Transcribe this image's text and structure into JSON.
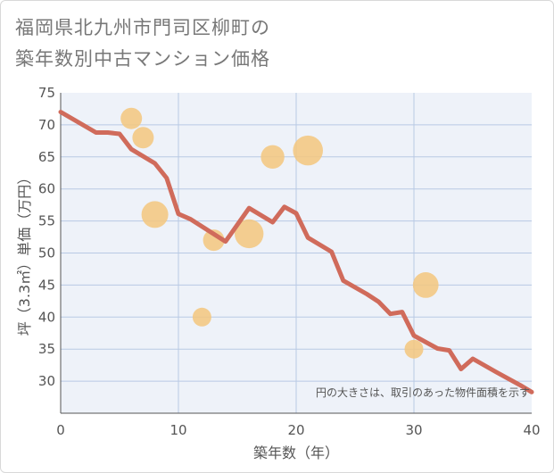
{
  "title_line1": "福岡県北九州市門司区柳町の",
  "title_line2": "築年数別中古マンション価格",
  "chart_data": {
    "type": "scatter+line",
    "title": "福岡県北九州市門司区柳町の築年数別中古マンション価格",
    "xlabel": "築年数（年）",
    "ylabel": "坪（3.3㎡）単価（万円）",
    "xlim": [
      0,
      40
    ],
    "ylim": [
      25,
      75
    ],
    "xticks": [
      0,
      10,
      20,
      30,
      40
    ],
    "yticks": [
      30,
      35,
      40,
      45,
      50,
      55,
      60,
      65,
      70,
      75
    ],
    "grid": true,
    "note": "円の大きさは、取引のあった物件面積を示す",
    "colors": {
      "line": "#d06b5b",
      "bubble": "#f3c77e"
    },
    "line": {
      "x": [
        0,
        3,
        4,
        5,
        6,
        8,
        9,
        10,
        11,
        14,
        16,
        18,
        19,
        20,
        21,
        23,
        24,
        26,
        27,
        28,
        29,
        30,
        32,
        33,
        34,
        35,
        37,
        39,
        40
      ],
      "y": [
        72,
        68.8,
        68.8,
        68.6,
        66.2,
        64,
        61.7,
        56.1,
        55.3,
        51.8,
        57,
        54.8,
        57.2,
        56.2,
        52.4,
        50.2,
        45.7,
        43.6,
        42.4,
        40.5,
        40.8,
        37.1,
        35.1,
        34.8,
        31.9,
        33.5,
        31.4,
        29.4,
        28.3
      ]
    },
    "bubbles": [
      {
        "x": 6,
        "y": 71,
        "size": 1.0
      },
      {
        "x": 7,
        "y": 68,
        "size": 1.0
      },
      {
        "x": 8,
        "y": 56,
        "size": 1.5
      },
      {
        "x": 12,
        "y": 40,
        "size": 0.75
      },
      {
        "x": 13,
        "y": 52,
        "size": 1.0
      },
      {
        "x": 16,
        "y": 53,
        "size": 1.7
      },
      {
        "x": 18,
        "y": 65,
        "size": 1.2
      },
      {
        "x": 21,
        "y": 66,
        "size": 1.8
      },
      {
        "x": 30,
        "y": 35,
        "size": 0.75
      },
      {
        "x": 31,
        "y": 45,
        "size": 1.4
      }
    ]
  }
}
